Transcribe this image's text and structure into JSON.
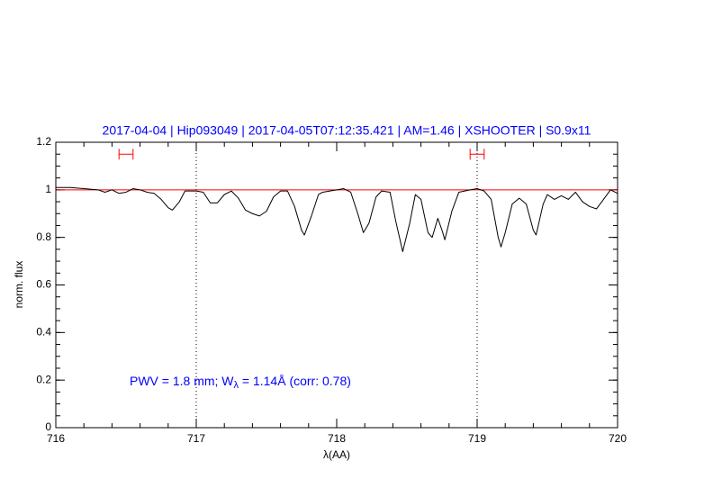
{
  "chart_data": {
    "type": "line",
    "title": "2017-04-04 | Hip093049 | 2017-04-05T07:12:35.421 | AM=1.46 | XSHOOTER | S0.9x11",
    "xlabel": "λ(AA)",
    "ylabel": "norm. flux",
    "annotation_parts": [
      "PWV = 1.8 mm; W",
      "λ",
      " = 1.14Å (corr: 0.78)"
    ],
    "xlim": [
      716,
      720
    ],
    "ylim": [
      0,
      1.2
    ],
    "xticks": [
      716,
      717,
      718,
      719,
      720
    ],
    "yticks": [
      0,
      0.2,
      0.4,
      0.6,
      0.8,
      1,
      1.2
    ],
    "xminor": 0.2,
    "yminor": 0.05,
    "continuum": {
      "value": 1,
      "color": "#ff0000"
    },
    "vlines": [
      717,
      719
    ],
    "ranges": {
      "y": 1.15,
      "color": "#ff0000",
      "spans": [
        [
          716.45,
          716.55
        ],
        [
          718.95,
          719.05
        ]
      ]
    },
    "series": [
      {
        "color": "#000000",
        "x": [
          716.0,
          716.1,
          716.2,
          716.3,
          716.35,
          716.4,
          716.45,
          716.5,
          716.55,
          716.6,
          716.65,
          716.7,
          716.75,
          716.8,
          716.83,
          716.88,
          716.92,
          717.0,
          717.05,
          717.1,
          717.15,
          717.2,
          717.25,
          717.3,
          717.35,
          717.4,
          717.45,
          717.5,
          717.55,
          717.6,
          717.65,
          717.7,
          717.75,
          717.77,
          717.82,
          717.87,
          717.9,
          718.0,
          718.05,
          718.1,
          718.15,
          718.19,
          718.23,
          718.28,
          718.32,
          718.38,
          718.42,
          718.47,
          718.52,
          718.56,
          718.6,
          718.65,
          718.68,
          718.72,
          718.75,
          718.77,
          718.82,
          718.87,
          718.95,
          719.0,
          719.05,
          719.1,
          719.15,
          719.17,
          719.2,
          719.25,
          719.3,
          719.35,
          719.4,
          719.42,
          719.47,
          719.5,
          719.55,
          719.6,
          719.65,
          719.7,
          719.75,
          719.8,
          719.85,
          719.9,
          719.95,
          720.0
        ],
        "values": [
          1.01,
          1.01,
          1.005,
          1.0,
          0.99,
          1.0,
          0.985,
          0.99,
          1.005,
          1.0,
          0.99,
          0.985,
          0.96,
          0.925,
          0.915,
          0.95,
          0.995,
          0.995,
          0.99,
          0.945,
          0.945,
          0.98,
          0.995,
          0.965,
          0.915,
          0.9,
          0.89,
          0.91,
          0.97,
          0.995,
          0.995,
          0.93,
          0.83,
          0.81,
          0.89,
          0.98,
          0.99,
          1.0,
          1.005,
          0.99,
          0.9,
          0.82,
          0.86,
          0.97,
          0.995,
          0.99,
          0.87,
          0.74,
          0.86,
          0.98,
          0.96,
          0.82,
          0.8,
          0.88,
          0.83,
          0.79,
          0.91,
          0.99,
          1.0,
          1.005,
          0.995,
          0.96,
          0.8,
          0.76,
          0.82,
          0.94,
          0.965,
          0.94,
          0.83,
          0.81,
          0.94,
          0.98,
          0.96,
          0.975,
          0.96,
          0.99,
          0.95,
          0.93,
          0.92,
          0.96,
          1.0,
          0.985
        ]
      }
    ]
  }
}
